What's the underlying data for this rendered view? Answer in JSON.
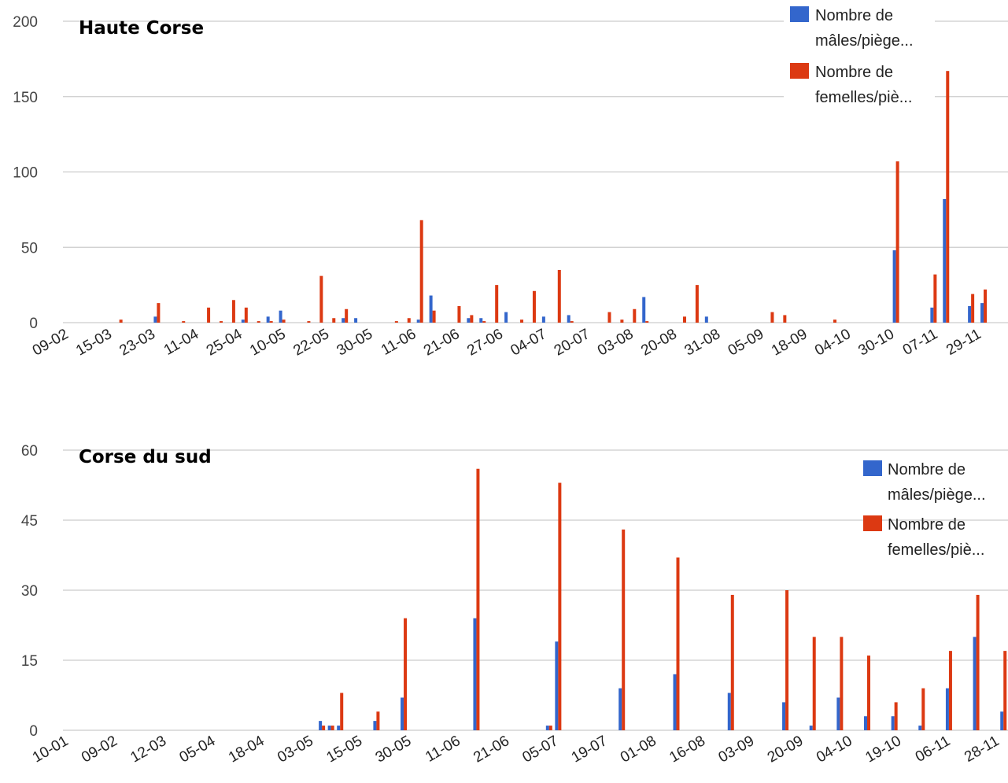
{
  "colors": {
    "males": "#3366cc",
    "females": "#dc3912"
  },
  "chart_data": [
    {
      "type": "bar",
      "title": "Haute Corse",
      "xlabel": "",
      "ylabel": "",
      "ylim": [
        0,
        200
      ],
      "yticks": [
        "0",
        "50",
        "100",
        "150",
        "200"
      ],
      "grid": true,
      "legend": "top-right",
      "x_tick_labels": [
        "09-02",
        "15-03",
        "23-03",
        "11-04",
        "25-04",
        "10-05",
        "22-05",
        "30-05",
        "11-06",
        "21-06",
        "27-06",
        "04-07",
        "20-07",
        "03-08",
        "20-08",
        "31-08",
        "05-09",
        "18-09",
        "04-10",
        "30-10",
        "07-11",
        "29-11"
      ],
      "series": [
        {
          "name": "Nombre de mâles/piège...",
          "values": [
            0,
            0,
            0,
            0,
            0,
            0,
            0,
            4,
            0,
            0,
            0,
            0,
            0,
            0,
            2,
            0,
            4,
            8,
            0,
            0,
            0,
            0,
            3,
            3,
            0,
            0,
            0,
            0,
            2,
            18,
            0,
            0,
            3,
            3,
            0,
            7,
            0,
            0,
            4,
            0,
            5,
            0,
            0,
            0,
            0,
            0,
            17,
            0,
            0,
            0,
            0,
            4,
            0,
            0,
            0,
            0,
            0,
            0,
            0,
            0,
            0,
            0,
            0,
            0,
            0,
            0,
            48,
            0,
            0,
            10,
            82,
            0,
            11,
            13
          ]
        },
        {
          "name": "Nombre de femelles/piè...",
          "values": [
            0,
            0,
            0,
            0,
            2,
            0,
            0,
            13,
            0,
            1,
            0,
            10,
            1,
            15,
            10,
            1,
            1,
            2,
            0,
            1,
            31,
            3,
            9,
            0,
            0,
            0,
            1,
            3,
            68,
            8,
            0,
            11,
            5,
            1,
            25,
            0,
            2,
            21,
            0,
            35,
            1,
            0,
            0,
            7,
            2,
            9,
            1,
            0,
            0,
            4,
            25,
            0,
            0,
            0,
            0,
            0,
            7,
            5,
            0,
            0,
            0,
            2,
            0,
            0,
            0,
            0,
            107,
            0,
            0,
            32,
            167,
            0,
            19,
            22
          ]
        }
      ]
    },
    {
      "type": "bar",
      "title": "Corse du sud",
      "xlabel": "",
      "ylabel": "",
      "ylim": [
        0,
        60
      ],
      "yticks": [
        "0",
        "15",
        "30",
        "45",
        "60"
      ],
      "grid": true,
      "legend": "top-right",
      "x_tick_labels": [
        "10-01",
        "09-02",
        "12-03",
        "05-04",
        "18-04",
        "03-05",
        "15-05",
        "30-05",
        "11-06",
        "21-06",
        "05-07",
        "19-07",
        "01-08",
        "16-08",
        "03-09",
        "20-09",
        "04-10",
        "19-10",
        "06-11",
        "28-11"
      ],
      "series": [
        {
          "name": "Nombre de mâles/piège...",
          "values": [
            0,
            0,
            0,
            0,
            0,
            0,
            0,
            0,
            0,
            0,
            0,
            0,
            0,
            0,
            0,
            0,
            0,
            0,
            0,
            0,
            0,
            0,
            0,
            0,
            0,
            0,
            0,
            0,
            2,
            1,
            1,
            0,
            0,
            0,
            2,
            0,
            0,
            7,
            0,
            0,
            0,
            0,
            0,
            0,
            0,
            24,
            0,
            0,
            0,
            0,
            0,
            0,
            0,
            1,
            19,
            0,
            0,
            0,
            0,
            0,
            0,
            9,
            0,
            0,
            0,
            0,
            0,
            12,
            0,
            0,
            0,
            0,
            0,
            8,
            0,
            0,
            0,
            0,
            0,
            6,
            0,
            0,
            1,
            0,
            0,
            7,
            0,
            0,
            3,
            0,
            0,
            3,
            0,
            0,
            1,
            0,
            0,
            9,
            0,
            0,
            20,
            0,
            0,
            4
          ]
        },
        {
          "name": "Nombre de femelles/piè...",
          "values": [
            0,
            0,
            0,
            0,
            0,
            0,
            0,
            0,
            0,
            0,
            0,
            0,
            0,
            0,
            0,
            0,
            0,
            0,
            0,
            0,
            0,
            0,
            0,
            0,
            0,
            0,
            0,
            0,
            1,
            1,
            8,
            0,
            0,
            0,
            4,
            0,
            0,
            24,
            0,
            0,
            0,
            0,
            0,
            0,
            0,
            56,
            0,
            0,
            0,
            0,
            0,
            0,
            0,
            1,
            53,
            0,
            0,
            0,
            0,
            0,
            0,
            43,
            0,
            0,
            0,
            0,
            0,
            37,
            0,
            0,
            0,
            0,
            0,
            29,
            0,
            0,
            0,
            0,
            0,
            30,
            0,
            0,
            20,
            0,
            0,
            20,
            0,
            0,
            16,
            0,
            0,
            6,
            0,
            0,
            9,
            0,
            0,
            17,
            0,
            0,
            29,
            0,
            0,
            17
          ]
        }
      ]
    }
  ]
}
